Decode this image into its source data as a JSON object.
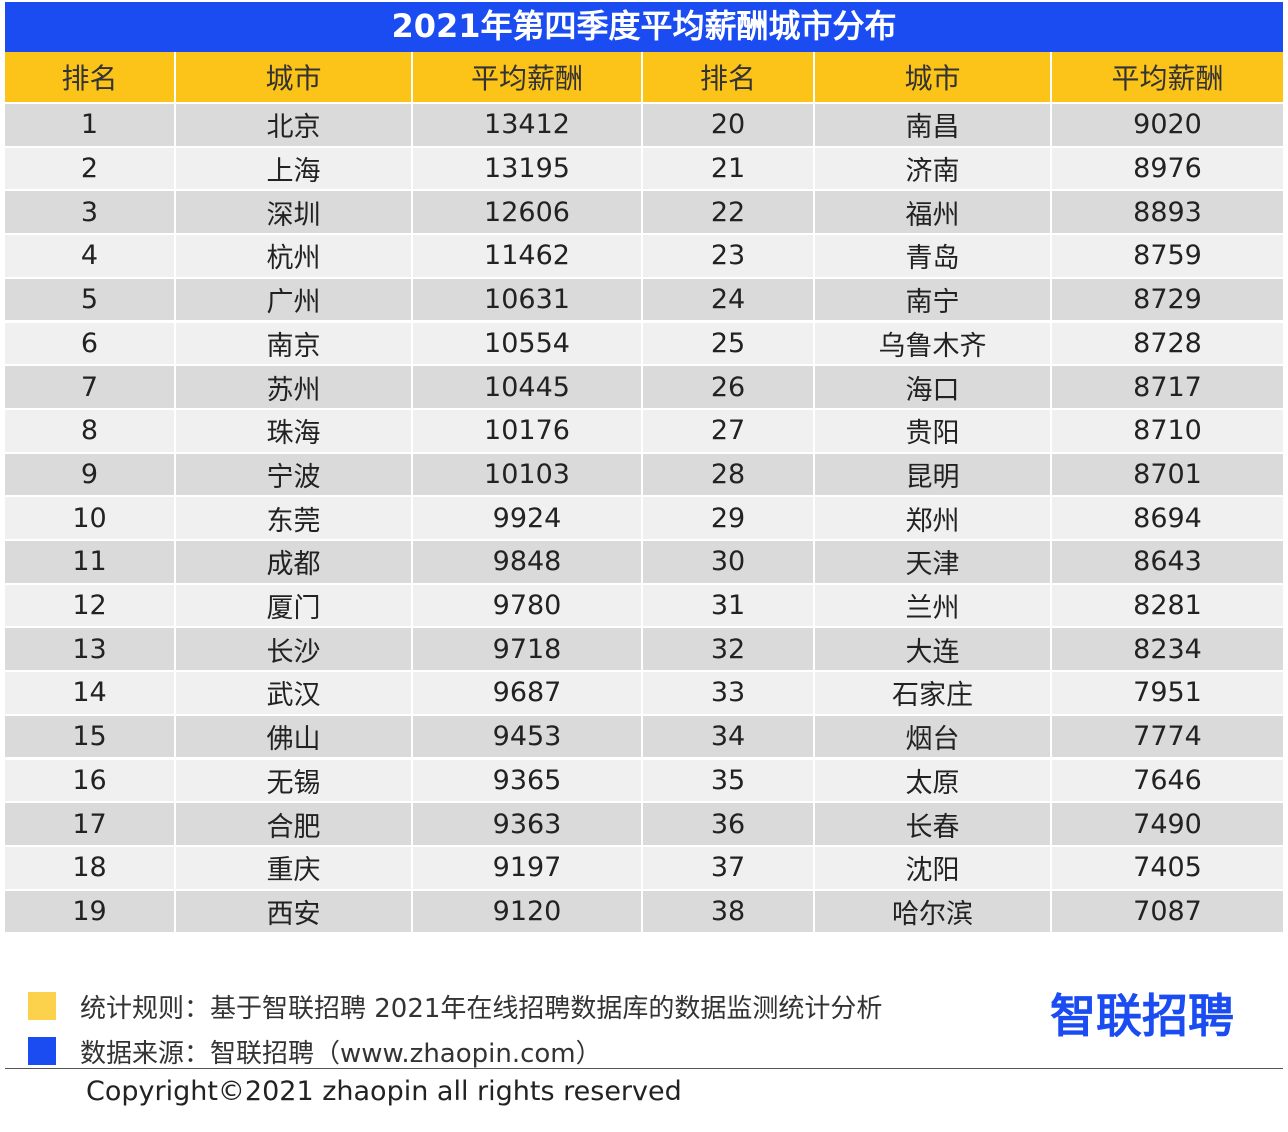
{
  "title": "2021年第四季度平均薪酬城市分布",
  "table": {
    "header": [
      "排名",
      "城市",
      "平均薪酬",
      "排名",
      "城市",
      "平均薪酬"
    ],
    "rows": [
      [
        1,
        "北京",
        13412,
        20,
        "南昌",
        9020
      ],
      [
        2,
        "上海",
        13195,
        21,
        "济南",
        8976
      ],
      [
        3,
        "深圳",
        12606,
        22,
        "福州",
        8893
      ],
      [
        4,
        "杭州",
        11462,
        23,
        "青岛",
        8759
      ],
      [
        5,
        "广州",
        10631,
        24,
        "南宁",
        8729
      ],
      [
        6,
        "南京",
        10554,
        25,
        "乌鲁木齐",
        8728
      ],
      [
        7,
        "苏州",
        10445,
        26,
        "海口",
        8717
      ],
      [
        8,
        "珠海",
        10176,
        27,
        "贵阳",
        8710
      ],
      [
        9,
        "宁波",
        10103,
        28,
        "昆明",
        8701
      ],
      [
        10,
        "东莞",
        9924,
        29,
        "郑州",
        8694
      ],
      [
        11,
        "成都",
        9848,
        30,
        "天津",
        8643
      ],
      [
        12,
        "厦门",
        9780,
        31,
        "兰州",
        8281
      ],
      [
        13,
        "长沙",
        9718,
        32,
        "大连",
        8234
      ],
      [
        14,
        "武汉",
        9687,
        33,
        "石家庄",
        7951
      ],
      [
        15,
        "佛山",
        9453,
        34,
        "烟台",
        7774
      ],
      [
        16,
        "无锡",
        9365,
        35,
        "太原",
        7646
      ],
      [
        17,
        "合肥",
        9363,
        36,
        "长春",
        7490
      ],
      [
        18,
        "重庆",
        9197,
        37,
        "沈阳",
        7405
      ],
      [
        19,
        "西安",
        9120,
        38,
        "哈尔滨",
        7087
      ]
    ]
  },
  "notes": [
    "统计规则：基于智联招聘  2021年在线招聘数据库的数据监测统计分析",
    "数据来源：智联招聘（www.zhaopin.com）"
  ],
  "logo": "智联招聘",
  "copyright": "Copyright©2021 zhaopin all rights reserved"
}
